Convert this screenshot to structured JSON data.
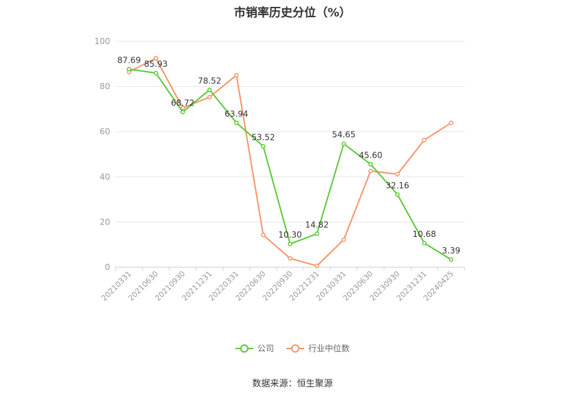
{
  "chart_data": {
    "type": "line",
    "title": "市销率历史分位（%）",
    "xlabel": "",
    "ylabel": "",
    "ylim": [
      0,
      100
    ],
    "yticks": [
      0,
      20,
      40,
      60,
      80,
      100
    ],
    "grid": true,
    "legend_position": "bottom",
    "categories": [
      "20210331",
      "20210630",
      "20210930",
      "20211231",
      "20220331",
      "20220630",
      "20220930",
      "20221231",
      "20230331",
      "20230630",
      "20230930",
      "20231231",
      "20240425"
    ],
    "series": [
      {
        "name": "公司",
        "color": "#5cc83a",
        "values": [
          87.69,
          85.93,
          68.72,
          78.52,
          63.94,
          53.52,
          10.3,
          14.82,
          54.65,
          45.6,
          32.16,
          10.68,
          3.39
        ],
        "labels": [
          "87.69",
          "85.93",
          "68.72",
          "78.52",
          "63.94",
          "53.52",
          "10.30",
          "14.82",
          "54.65",
          "45.60",
          "32.16",
          "10.68",
          "3.39"
        ]
      },
      {
        "name": "行业中位数",
        "color": "#f4956a",
        "values": [
          86.5,
          92.5,
          70.5,
          75.3,
          85.0,
          14.3,
          3.9,
          0.6,
          12.2,
          42.6,
          41.2,
          56.3,
          63.9
        ]
      }
    ]
  },
  "footer": {
    "source": "数据来源：恒生聚源"
  }
}
